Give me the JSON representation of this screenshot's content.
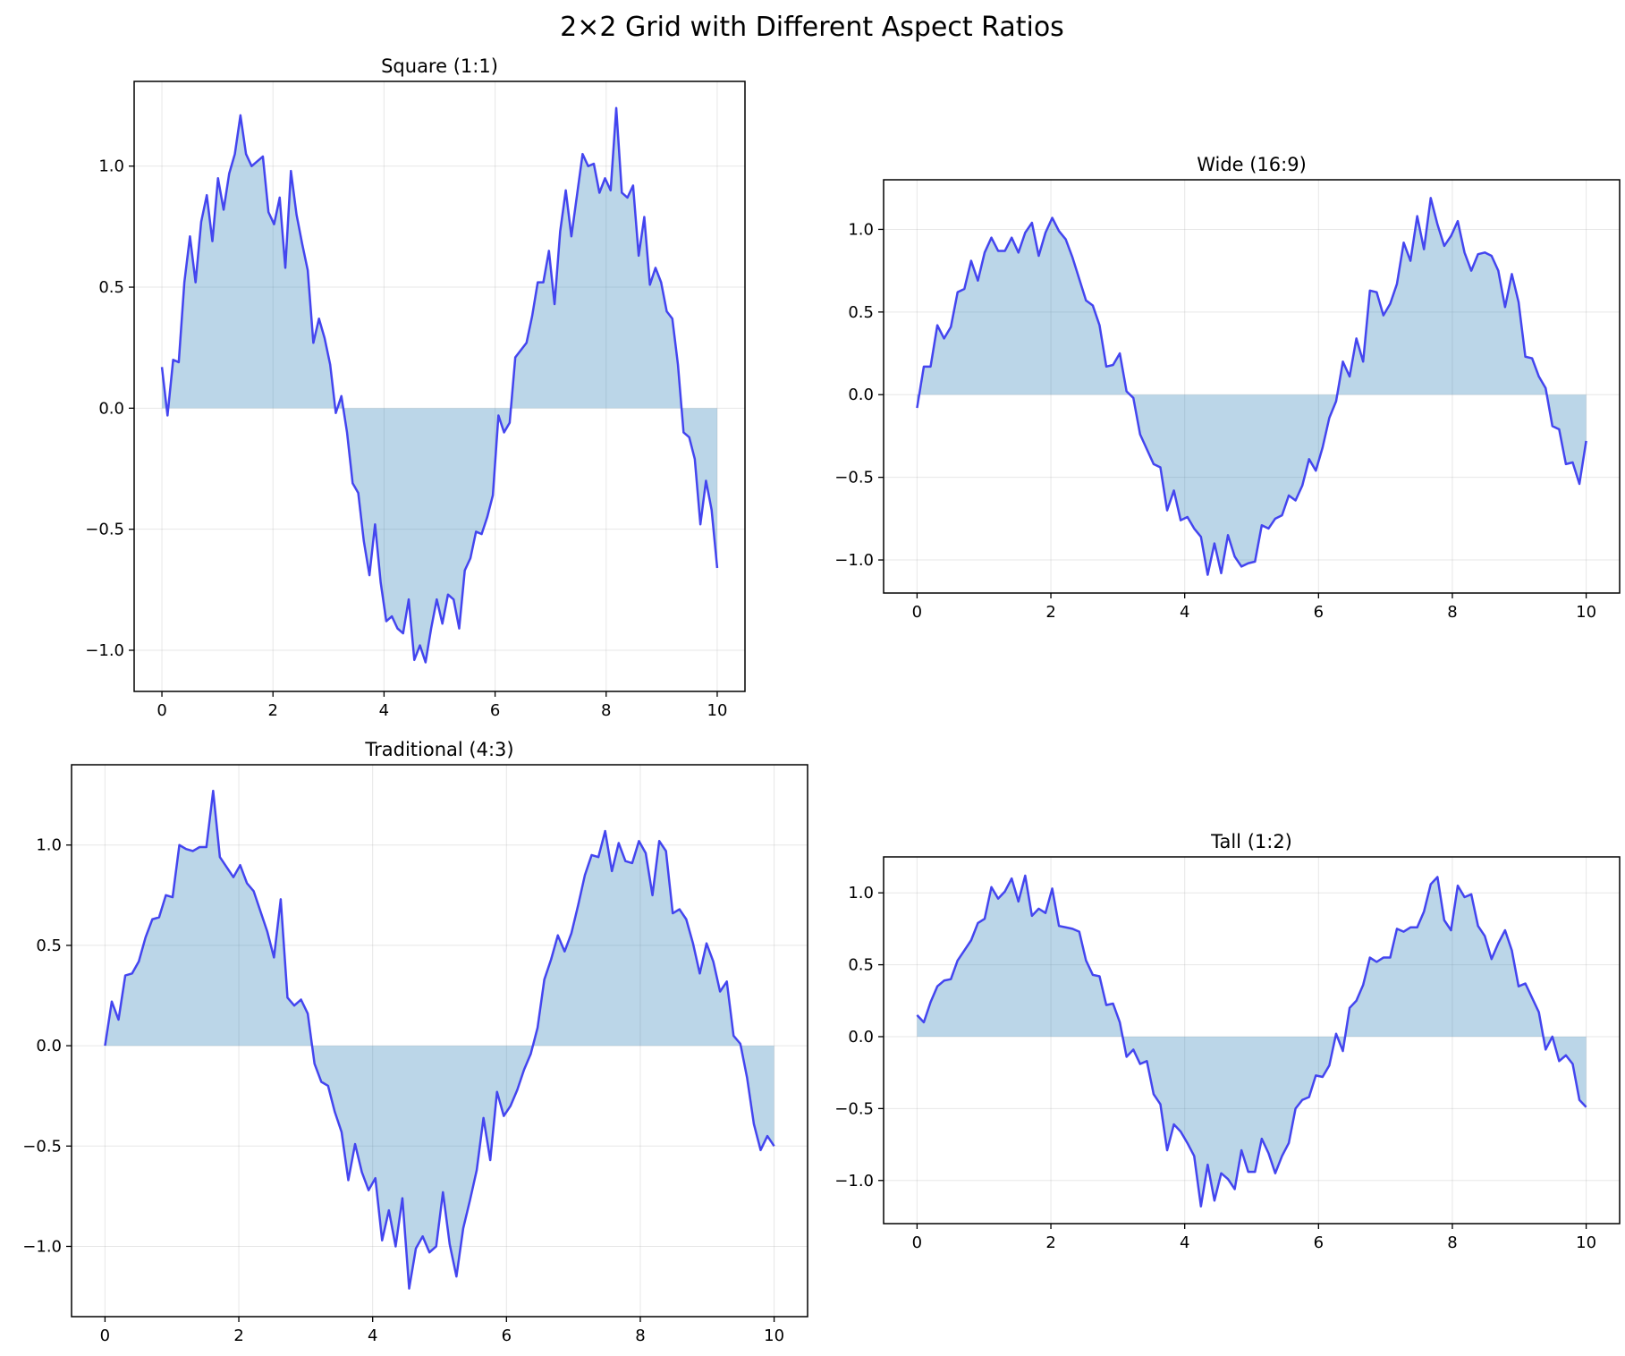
{
  "title": "2×2 Grid with Different Aspect Ratios",
  "colors": {
    "line": "#3333ee",
    "fill": "#1f77b4"
  },
  "chart_data": [
    {
      "type": "area",
      "title": "Square (1:1)",
      "xlabel": "",
      "ylabel": "",
      "xlim": [
        -0.5,
        10.5
      ],
      "ylim": [
        -1.17,
        1.35
      ],
      "xticks": [
        0,
        2,
        4,
        6,
        8,
        10
      ],
      "yticks": [
        -1.0,
        -0.5,
        0.0,
        0.5,
        1.0
      ],
      "grid": true,
      "x_start": 0,
      "x_end": 10,
      "values": [
        0.17,
        -0.03,
        0.2,
        0.19,
        0.52,
        0.71,
        0.52,
        0.77,
        0.88,
        0.69,
        0.95,
        0.82,
        0.97,
        1.05,
        1.21,
        1.05,
        1.0,
        1.02,
        1.04,
        0.81,
        0.76,
        0.87,
        0.58,
        0.98,
        0.8,
        0.68,
        0.57,
        0.27,
        0.37,
        0.29,
        0.18,
        -0.02,
        0.05,
        -0.1,
        -0.31,
        -0.35,
        -0.55,
        -0.69,
        -0.48,
        -0.72,
        -0.88,
        -0.86,
        -0.91,
        -0.93,
        -0.79,
        -1.04,
        -0.98,
        -1.05,
        -0.91,
        -0.79,
        -0.89,
        -0.77,
        -0.79,
        -0.91,
        -0.67,
        -0.62,
        -0.51,
        -0.52,
        -0.45,
        -0.36,
        -0.03,
        -0.1,
        -0.06,
        0.21,
        0.24,
        0.27,
        0.38,
        0.52,
        0.52,
        0.65,
        0.43,
        0.73,
        0.9,
        0.71,
        0.88,
        1.05,
        1.0,
        1.01,
        0.89,
        0.95,
        0.9,
        1.24,
        0.89,
        0.87,
        0.92,
        0.63,
        0.79,
        0.51,
        0.58,
        0.52,
        0.4,
        0.37,
        0.18,
        -0.1,
        -0.12,
        -0.21,
        -0.48,
        -0.3,
        -0.42,
        -0.66
      ]
    },
    {
      "type": "area",
      "title": "Wide (16:9)",
      "xlabel": "",
      "ylabel": "",
      "xlim": [
        -0.5,
        10.5
      ],
      "ylim": [
        -1.2,
        1.3
      ],
      "xticks": [
        0,
        2,
        4,
        6,
        8,
        10
      ],
      "yticks": [
        -1.0,
        -0.5,
        0.0,
        0.5,
        1.0
      ],
      "grid": true,
      "x_start": 0,
      "x_end": 10,
      "values": [
        -0.08,
        0.17,
        0.17,
        0.42,
        0.34,
        0.41,
        0.62,
        0.64,
        0.81,
        0.69,
        0.86,
        0.95,
        0.87,
        0.87,
        0.95,
        0.86,
        0.98,
        1.04,
        0.84,
        0.98,
        1.07,
        0.99,
        0.94,
        0.83,
        0.7,
        0.57,
        0.54,
        0.42,
        0.17,
        0.18,
        0.25,
        0.02,
        -0.02,
        -0.24,
        -0.33,
        -0.42,
        -0.44,
        -0.7,
        -0.58,
        -0.76,
        -0.74,
        -0.81,
        -0.86,
        -1.09,
        -0.9,
        -1.08,
        -0.85,
        -0.98,
        -1.04,
        -1.02,
        -1.01,
        -0.79,
        -0.81,
        -0.75,
        -0.73,
        -0.61,
        -0.64,
        -0.55,
        -0.39,
        -0.46,
        -0.32,
        -0.14,
        -0.04,
        0.2,
        0.11,
        0.34,
        0.2,
        0.63,
        0.62,
        0.48,
        0.55,
        0.67,
        0.92,
        0.81,
        1.08,
        0.88,
        1.19,
        1.03,
        0.9,
        0.96,
        1.05,
        0.86,
        0.75,
        0.85,
        0.86,
        0.84,
        0.75,
        0.53,
        0.73,
        0.56,
        0.23,
        0.22,
        0.11,
        0.04,
        -0.19,
        -0.21,
        -0.42,
        -0.41,
        -0.54,
        -0.28
      ]
    },
    {
      "type": "area",
      "title": "Traditional (4:3)",
      "xlabel": "",
      "ylabel": "",
      "xlim": [
        -0.5,
        10.5
      ],
      "ylim": [
        -1.35,
        1.4
      ],
      "xticks": [
        0,
        2,
        4,
        6,
        8,
        10
      ],
      "yticks": [
        -1.0,
        -0.5,
        0.0,
        0.5,
        1.0
      ],
      "grid": true,
      "x_start": 0,
      "x_end": 10,
      "values": [
        0.0,
        0.22,
        0.13,
        0.35,
        0.36,
        0.42,
        0.54,
        0.63,
        0.64,
        0.75,
        0.74,
        1.0,
        0.98,
        0.97,
        0.99,
        0.99,
        1.27,
        0.94,
        0.89,
        0.84,
        0.9,
        0.81,
        0.77,
        0.67,
        0.57,
        0.44,
        0.73,
        0.24,
        0.2,
        0.23,
        0.16,
        -0.09,
        -0.18,
        -0.2,
        -0.33,
        -0.43,
        -0.67,
        -0.49,
        -0.63,
        -0.72,
        -0.66,
        -0.97,
        -0.82,
        -1.0,
        -0.76,
        -1.21,
        -1.01,
        -0.95,
        -1.03,
        -1.0,
        -0.73,
        -0.99,
        -1.15,
        -0.91,
        -0.77,
        -0.62,
        -0.36,
        -0.57,
        -0.23,
        -0.35,
        -0.3,
        -0.22,
        -0.12,
        -0.04,
        0.09,
        0.33,
        0.43,
        0.55,
        0.47,
        0.56,
        0.7,
        0.85,
        0.95,
        0.94,
        1.07,
        0.87,
        1.01,
        0.92,
        0.91,
        1.02,
        0.96,
        0.75,
        1.02,
        0.97,
        0.66,
        0.68,
        0.63,
        0.51,
        0.36,
        0.51,
        0.42,
        0.27,
        0.32,
        0.05,
        0.01,
        -0.16,
        -0.39,
        -0.52,
        -0.45,
        -0.5
      ]
    },
    {
      "type": "area",
      "title": "Tall (1:2)",
      "xlabel": "",
      "ylabel": "",
      "xlim": [
        -0.5,
        10.5
      ],
      "ylim": [
        -1.3,
        1.25
      ],
      "xticks": [
        0,
        2,
        4,
        6,
        8,
        10
      ],
      "yticks": [
        -1.0,
        -0.5,
        0.0,
        0.5,
        1.0
      ],
      "grid": true,
      "x_start": 0,
      "x_end": 10,
      "values": [
        0.15,
        0.1,
        0.24,
        0.35,
        0.39,
        0.4,
        0.53,
        0.6,
        0.67,
        0.79,
        0.82,
        1.04,
        0.96,
        1.01,
        1.1,
        0.94,
        1.12,
        0.84,
        0.89,
        0.86,
        1.03,
        0.77,
        0.76,
        0.75,
        0.73,
        0.53,
        0.43,
        0.42,
        0.22,
        0.23,
        0.1,
        -0.14,
        -0.09,
        -0.19,
        -0.17,
        -0.4,
        -0.47,
        -0.79,
        -0.61,
        -0.66,
        -0.74,
        -0.83,
        -1.18,
        -0.89,
        -1.14,
        -0.95,
        -0.99,
        -1.06,
        -0.79,
        -0.94,
        -0.94,
        -0.71,
        -0.81,
        -0.95,
        -0.83,
        -0.74,
        -0.5,
        -0.44,
        -0.42,
        -0.27,
        -0.28,
        -0.2,
        0.02,
        -0.1,
        0.2,
        0.25,
        0.36,
        0.55,
        0.52,
        0.55,
        0.55,
        0.75,
        0.73,
        0.76,
        0.76,
        0.87,
        1.06,
        1.11,
        0.81,
        0.74,
        1.05,
        0.97,
        0.99,
        0.77,
        0.7,
        0.54,
        0.65,
        0.74,
        0.6,
        0.35,
        0.37,
        0.27,
        0.17,
        -0.09,
        0.0,
        -0.17,
        -0.13,
        -0.19,
        -0.44,
        -0.49
      ]
    }
  ]
}
